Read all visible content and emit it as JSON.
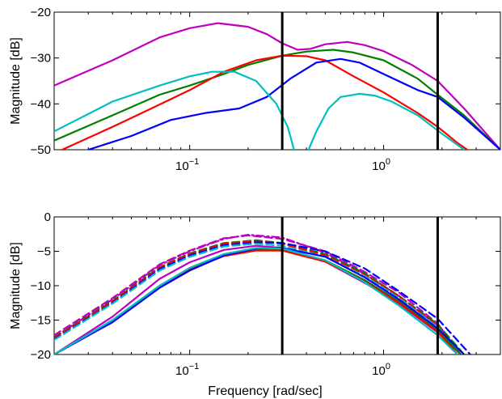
{
  "chart_data": [
    {
      "type": "line",
      "xscale": "log",
      "xlim": [
        0.02,
        4
      ],
      "ylim": [
        -50,
        -20
      ],
      "xticks": [
        {
          "value": 0.1,
          "base": "10",
          "exp": "−1"
        },
        {
          "value": 1,
          "base": "10",
          "exp": "0"
        }
      ],
      "yticks": [
        -50,
        -40,
        -30,
        -20
      ],
      "ytick_labels": [
        "−50",
        "−40",
        "−30",
        "−20"
      ],
      "xlabel": "",
      "ylabel": "Magnitude [dB]",
      "vlines": [
        0.3,
        1.9
      ],
      "vline_color": "#000000",
      "series": [
        {
          "color": "#bf00bf",
          "style": "solid",
          "points": [
            [
              0.02,
              -36
            ],
            [
              0.04,
              -30.5
            ],
            [
              0.07,
              -25.5
            ],
            [
              0.1,
              -23.5
            ],
            [
              0.14,
              -22.4
            ],
            [
              0.2,
              -23.2
            ],
            [
              0.25,
              -24.8
            ],
            [
              0.3,
              -26.8
            ],
            [
              0.36,
              -28.2
            ],
            [
              0.42,
              -28
            ],
            [
              0.5,
              -27
            ],
            [
              0.65,
              -26.5
            ],
            [
              0.8,
              -27.2
            ],
            [
              1,
              -28.5
            ],
            [
              1.4,
              -31.5
            ],
            [
              1.9,
              -35
            ],
            [
              2.6,
              -41
            ],
            [
              4,
              -50
            ]
          ]
        },
        {
          "color": "#008000",
          "style": "solid",
          "points": [
            [
              0.02,
              -48
            ],
            [
              0.04,
              -42.5
            ],
            [
              0.07,
              -38
            ],
            [
              0.1,
              -36
            ],
            [
              0.15,
              -33.5
            ],
            [
              0.2,
              -31.5
            ],
            [
              0.3,
              -29.5
            ],
            [
              0.4,
              -28.6
            ],
            [
              0.55,
              -28.2
            ],
            [
              0.7,
              -28.8
            ],
            [
              1,
              -30.5
            ],
            [
              1.5,
              -34.5
            ],
            [
              1.9,
              -38
            ],
            [
              2.6,
              -42.5
            ],
            [
              4,
              -50
            ]
          ]
        },
        {
          "color": "#ff0000",
          "style": "solid",
          "points": [
            [
              0.022,
              -50
            ],
            [
              0.04,
              -45
            ],
            [
              0.06,
              -41.5
            ],
            [
              0.1,
              -37
            ],
            [
              0.15,
              -33
            ],
            [
              0.22,
              -30.5
            ],
            [
              0.3,
              -29.5
            ],
            [
              0.4,
              -29.6
            ],
            [
              0.5,
              -30.5
            ],
            [
              0.7,
              -34
            ],
            [
              1,
              -37.5
            ],
            [
              1.5,
              -42
            ],
            [
              1.9,
              -45
            ],
            [
              2.4,
              -48.5
            ],
            [
              2.7,
              -50
            ]
          ]
        },
        {
          "color": "#0000ff",
          "style": "solid",
          "points": [
            [
              0.03,
              -50
            ],
            [
              0.05,
              -47
            ],
            [
              0.08,
              -43.5
            ],
            [
              0.12,
              -42
            ],
            [
              0.18,
              -41
            ],
            [
              0.25,
              -38.5
            ],
            [
              0.33,
              -34.5
            ],
            [
              0.45,
              -31
            ],
            [
              0.6,
              -30.2
            ],
            [
              0.75,
              -31
            ],
            [
              1,
              -33.5
            ],
            [
              1.5,
              -37
            ],
            [
              1.9,
              -38.5
            ],
            [
              2.6,
              -43
            ],
            [
              4,
              -50
            ]
          ]
        },
        {
          "color": "#00bfbf",
          "style": "solid",
          "points": [
            [
              0.02,
              -46
            ],
            [
              0.04,
              -39.5
            ],
            [
              0.07,
              -36
            ],
            [
              0.1,
              -34
            ],
            [
              0.13,
              -33
            ],
            [
              0.17,
              -33
            ],
            [
              0.22,
              -35
            ],
            [
              0.28,
              -40
            ],
            [
              0.32,
              -45
            ],
            [
              0.345,
              -50
            ]
          ]
        },
        {
          "color": "#00bfbf",
          "style": "solid",
          "points": [
            [
              0.41,
              -50
            ],
            [
              0.45,
              -46
            ],
            [
              0.52,
              -41
            ],
            [
              0.6,
              -38.5
            ],
            [
              0.75,
              -37.8
            ],
            [
              0.9,
              -38.2
            ],
            [
              1.1,
              -39.5
            ],
            [
              1.5,
              -42.5
            ],
            [
              2,
              -46.5
            ],
            [
              2.6,
              -50
            ]
          ]
        }
      ]
    },
    {
      "type": "line",
      "xscale": "log",
      "xlim": [
        0.02,
        4
      ],
      "ylim": [
        -20,
        0
      ],
      "xticks": [
        {
          "value": 0.1,
          "base": "10",
          "exp": "−1"
        },
        {
          "value": 1,
          "base": "10",
          "exp": "0"
        }
      ],
      "yticks": [
        -20,
        -15,
        -10,
        -5,
        0
      ],
      "ytick_labels": [
        "−20",
        "−15",
        "−10",
        "−5",
        "0"
      ],
      "xlabel": "Frequency [rad/sec]",
      "ylabel": "Magnitude [dB]",
      "vlines": [
        0.3,
        1.9
      ],
      "vline_color": "#000000",
      "series": [
        {
          "color": "#bf00bf",
          "style": "dashdot",
          "points": [
            [
              0.02,
              -17.5
            ],
            [
              0.04,
              -12
            ],
            [
              0.07,
              -7
            ],
            [
              0.1,
              -5
            ],
            [
              0.15,
              -3.2
            ],
            [
              0.2,
              -2.6
            ],
            [
              0.3,
              -3
            ],
            [
              0.5,
              -5.2
            ],
            [
              0.8,
              -8.3
            ],
            [
              1.2,
              -11.5
            ],
            [
              1.9,
              -15.8
            ],
            [
              2.5,
              -20
            ]
          ]
        },
        {
          "color": "#bf00bf",
          "style": "dashed",
          "points": [
            [
              0.02,
              -17.2
            ],
            [
              0.04,
              -11.8
            ],
            [
              0.07,
              -6.9
            ],
            [
              0.1,
              -4.9
            ],
            [
              0.15,
              -3.1
            ],
            [
              0.2,
              -2.7
            ],
            [
              0.3,
              -3.2
            ],
            [
              0.5,
              -5
            ],
            [
              0.8,
              -8
            ],
            [
              1.2,
              -11
            ],
            [
              1.9,
              -15.5
            ],
            [
              2.5,
              -20
            ]
          ]
        },
        {
          "color": "#008000",
          "style": "dashed",
          "points": [
            [
              0.02,
              -17.5
            ],
            [
              0.04,
              -12.2
            ],
            [
              0.07,
              -7.3
            ],
            [
              0.1,
              -5.3
            ],
            [
              0.15,
              -3.8
            ],
            [
              0.22,
              -3.4
            ],
            [
              0.3,
              -3.8
            ],
            [
              0.5,
              -5.4
            ],
            [
              0.8,
              -8.2
            ],
            [
              1.2,
              -11.5
            ],
            [
              1.9,
              -15.6
            ],
            [
              2.6,
              -20
            ]
          ]
        },
        {
          "color": "#ff0000",
          "style": "dashed",
          "points": [
            [
              0.02,
              -17.6
            ],
            [
              0.04,
              -12.3
            ],
            [
              0.07,
              -7.4
            ],
            [
              0.1,
              -5.4
            ],
            [
              0.15,
              -3.9
            ],
            [
              0.22,
              -3.5
            ],
            [
              0.3,
              -3.9
            ],
            [
              0.5,
              -5.6
            ],
            [
              0.8,
              -8.4
            ],
            [
              1.2,
              -11.6
            ],
            [
              1.9,
              -15.8
            ],
            [
              2.5,
              -20
            ]
          ]
        },
        {
          "color": "#0000ff",
          "style": "dashed",
          "points": [
            [
              0.02,
              -17.8
            ],
            [
              0.04,
              -12.5
            ],
            [
              0.07,
              -7.6
            ],
            [
              0.1,
              -5.6
            ],
            [
              0.15,
              -4.1
            ],
            [
              0.22,
              -3.7
            ],
            [
              0.3,
              -3.8
            ],
            [
              0.5,
              -5
            ],
            [
              0.8,
              -7.5
            ],
            [
              1.2,
              -10.8
            ],
            [
              1.9,
              -14.8
            ],
            [
              2.8,
              -20
            ]
          ]
        },
        {
          "color": "#00bfbf",
          "style": "dashed",
          "points": [
            [
              0.02,
              -17.9
            ],
            [
              0.04,
              -12.6
            ],
            [
              0.07,
              -7.8
            ],
            [
              0.1,
              -5.8
            ],
            [
              0.15,
              -4.3
            ],
            [
              0.22,
              -3.9
            ],
            [
              0.3,
              -4.2
            ],
            [
              0.5,
              -5.8
            ],
            [
              0.8,
              -8.6
            ],
            [
              1.2,
              -11.8
            ],
            [
              1.9,
              -16
            ],
            [
              2.5,
              -20
            ]
          ]
        },
        {
          "color": "#bf00bf",
          "style": "solid",
          "points": [
            [
              0.02,
              -20
            ],
            [
              0.04,
              -14.5
            ],
            [
              0.07,
              -9
            ],
            [
              0.1,
              -6.6
            ],
            [
              0.15,
              -4.8
            ],
            [
              0.22,
              -4.2
            ],
            [
              0.3,
              -4.5
            ],
            [
              0.5,
              -6.5
            ],
            [
              0.8,
              -9.6
            ],
            [
              1.2,
              -12.6
            ],
            [
              1.9,
              -16.8
            ],
            [
              2.5,
              -20
            ]
          ]
        },
        {
          "color": "#008000",
          "style": "solid",
          "points": [
            [
              0.02,
              -20
            ],
            [
              0.04,
              -15
            ],
            [
              0.07,
              -10
            ],
            [
              0.1,
              -7.5
            ],
            [
              0.15,
              -5.5
            ],
            [
              0.22,
              -4.8
            ],
            [
              0.3,
              -4.8
            ],
            [
              0.5,
              -6.3
            ],
            [
              0.8,
              -9.2
            ],
            [
              1.2,
              -12.3
            ],
            [
              1.9,
              -16.5
            ],
            [
              2.5,
              -20
            ]
          ]
        },
        {
          "color": "#ff0000",
          "style": "solid",
          "points": [
            [
              0.02,
              -20
            ],
            [
              0.04,
              -15.2
            ],
            [
              0.07,
              -10.2
            ],
            [
              0.1,
              -7.7
            ],
            [
              0.15,
              -5.7
            ],
            [
              0.22,
              -4.9
            ],
            [
              0.3,
              -4.9
            ],
            [
              0.5,
              -6.5
            ],
            [
              0.8,
              -9.4
            ],
            [
              1.2,
              -12.5
            ],
            [
              1.9,
              -16.7
            ],
            [
              2.4,
              -20
            ]
          ]
        },
        {
          "color": "#0000ff",
          "style": "solid",
          "points": [
            [
              0.02,
              -20
            ],
            [
              0.04,
              -15.3
            ],
            [
              0.07,
              -10.3
            ],
            [
              0.1,
              -7.8
            ],
            [
              0.15,
              -5.6
            ],
            [
              0.22,
              -4.6
            ],
            [
              0.3,
              -4.5
            ],
            [
              0.5,
              -5.8
            ],
            [
              0.8,
              -8.8
            ],
            [
              1.2,
              -12
            ],
            [
              1.9,
              -16.2
            ],
            [
              2.6,
              -20
            ]
          ]
        },
        {
          "color": "#00bfbf",
          "style": "solid",
          "points": [
            [
              0.02,
              -20
            ],
            [
              0.04,
              -15
            ],
            [
              0.07,
              -10
            ],
            [
              0.1,
              -7.4
            ],
            [
              0.15,
              -5.4
            ],
            [
              0.22,
              -4.5
            ],
            [
              0.3,
              -4.6
            ],
            [
              0.5,
              -6.3
            ],
            [
              0.8,
              -9.5
            ],
            [
              1.2,
              -12.9
            ],
            [
              1.9,
              -17.2
            ],
            [
              2.4,
              -20
            ]
          ]
        }
      ]
    }
  ]
}
